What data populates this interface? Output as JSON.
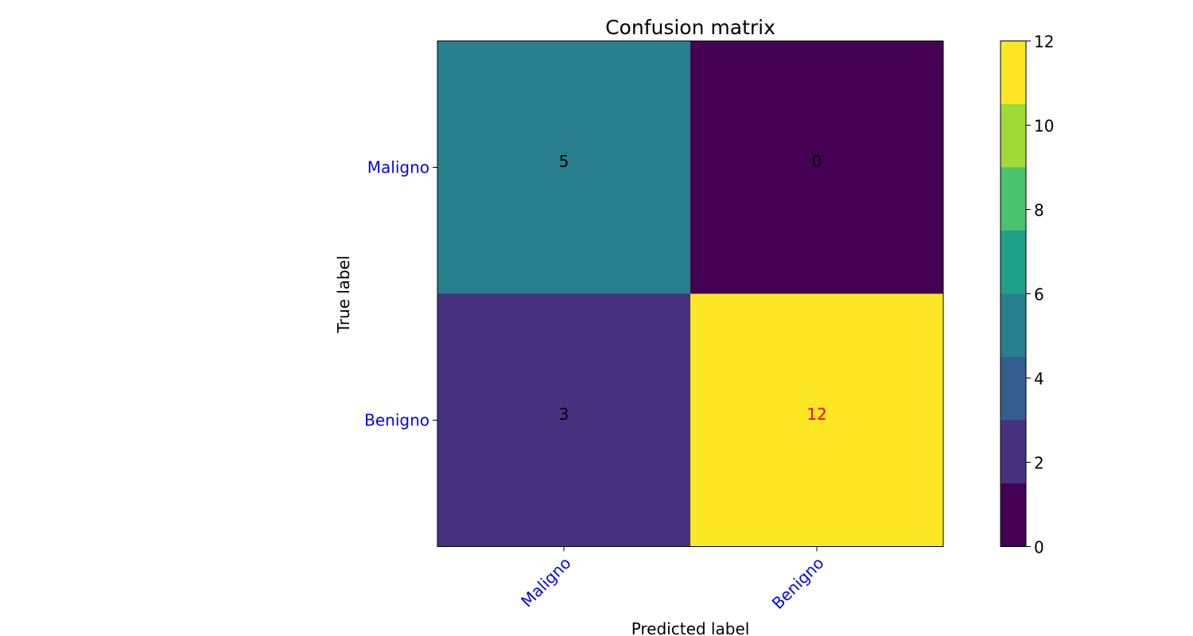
{
  "chart_data": {
    "type": "heatmap",
    "title": "Confusion matrix",
    "xlabel": "Predicted label",
    "ylabel": "True label",
    "x_categories": [
      "Maligno",
      "Benigno"
    ],
    "y_categories": [
      "Maligno",
      "Benigno"
    ],
    "values": [
      [
        5,
        0
      ],
      [
        3,
        12
      ]
    ],
    "tick_label_color": "#0000ff",
    "highlight_text_color": "#ff0000",
    "default_text_color": "#000000",
    "colormap": "viridis",
    "colorbar": {
      "range": [
        0,
        12
      ],
      "ticks": [
        "0",
        "2",
        "4",
        "6",
        "8",
        "10",
        "12"
      ],
      "bins": [
        {
          "from": 0,
          "to": 1.5,
          "color": "#440154"
        },
        {
          "from": 1.5,
          "to": 3,
          "color": "#46327e"
        },
        {
          "from": 3,
          "to": 4.5,
          "color": "#365c8d"
        },
        {
          "from": 4.5,
          "to": 6,
          "color": "#277f8e"
        },
        {
          "from": 6,
          "to": 7.5,
          "color": "#1fa187"
        },
        {
          "from": 7.5,
          "to": 9,
          "color": "#4ac16d"
        },
        {
          "from": 9,
          "to": 10.5,
          "color": "#a0da39"
        },
        {
          "from": 10.5,
          "to": 12,
          "color": "#fde725"
        }
      ]
    }
  }
}
